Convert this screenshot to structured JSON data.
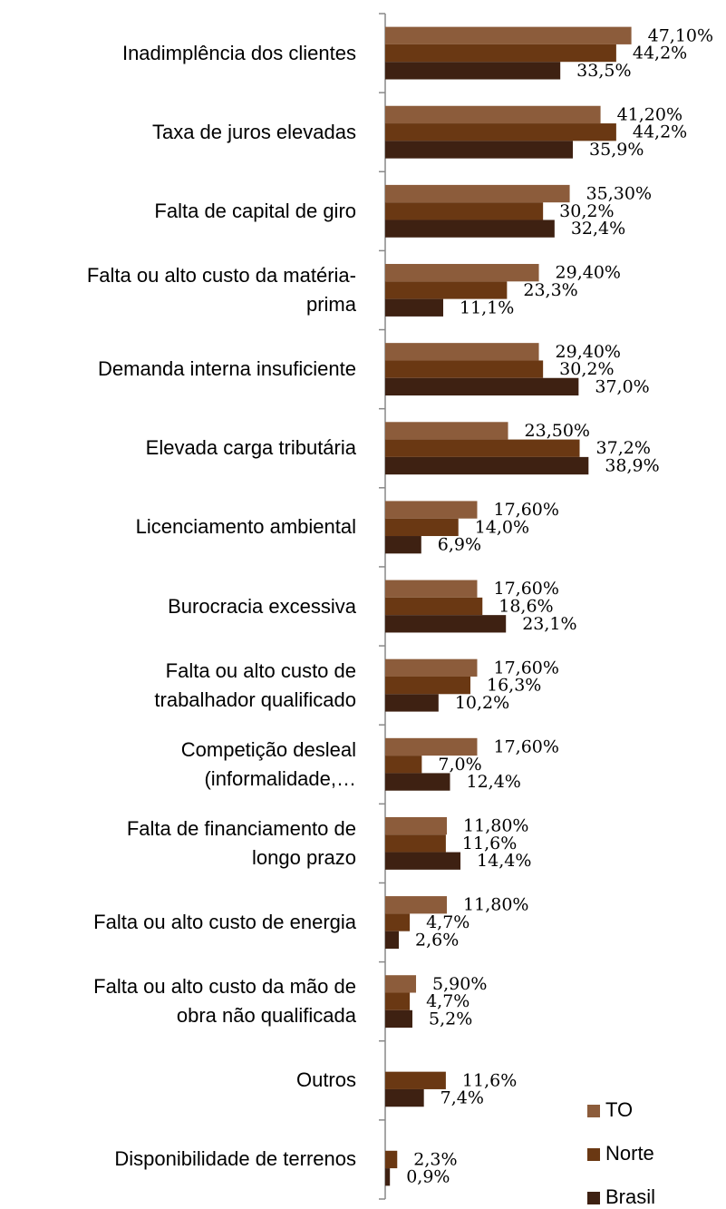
{
  "chart_data": {
    "type": "hbar",
    "categories": [
      "Inadimplência dos clientes",
      "Taxa de juros elevadas",
      "Falta de capital de giro",
      "Falta ou alto custo da matéria-\nprima",
      "Demanda interna insuficiente",
      "Elevada carga tributária",
      "Licenciamento ambiental",
      "Burocracia excessiva",
      "Falta ou alto custo de\ntrabalhador qualificado",
      "Competição desleal\n(informalidade,…",
      "Falta de financiamento de\nlongo prazo",
      "Falta ou alto custo de energia",
      "Falta ou alto custo da mão de\nobra não qualificada",
      "Outros",
      "Disponibilidade de terrenos"
    ],
    "series": [
      {
        "name": "TO",
        "color": "#8c5c3b",
        "values": [
          47.1,
          41.2,
          35.3,
          29.4,
          29.4,
          23.5,
          17.6,
          17.6,
          17.6,
          17.6,
          11.8,
          11.8,
          5.9,
          null,
          null
        ],
        "value_labels": [
          "47,10%",
          "41,20%",
          "35,30%",
          "29,40%",
          "29,40%",
          "23,50%",
          "17,60%",
          "17,60%",
          "17,60%",
          "17,60%",
          "11,80%",
          "11,80%",
          "5,90%",
          null,
          null
        ]
      },
      {
        "name": "Norte",
        "color": "#6a3813",
        "values": [
          44.2,
          44.2,
          30.2,
          23.3,
          30.2,
          37.2,
          14.0,
          18.6,
          16.3,
          7.0,
          11.6,
          4.7,
          4.7,
          11.6,
          2.3
        ],
        "value_labels": [
          "44,2%",
          "44,2%",
          "30,2%",
          "23,3%",
          "30,2%",
          "37,2%",
          "14,0%",
          "18,6%",
          "16,3%",
          "7,0%",
          "11,6%",
          "4,7%",
          "4,7%",
          "11,6%",
          "2,3%"
        ]
      },
      {
        "name": "Brasil",
        "color": "#3e2112",
        "values": [
          33.5,
          35.9,
          32.4,
          11.1,
          37.0,
          38.9,
          6.9,
          23.1,
          10.2,
          12.4,
          14.4,
          2.6,
          5.2,
          7.4,
          0.9
        ],
        "value_labels": [
          "33,5%",
          "35,9%",
          "32,4%",
          "11,1%",
          "37,0%",
          "38,9%",
          "6,9%",
          "23,1%",
          "10,2%",
          "12,4%",
          "14,4%",
          "2,6%",
          "5,2%",
          "7,4%",
          "0,9%"
        ]
      }
    ],
    "xlim": [
      0,
      60
    ],
    "legend": "bottom-right"
  }
}
